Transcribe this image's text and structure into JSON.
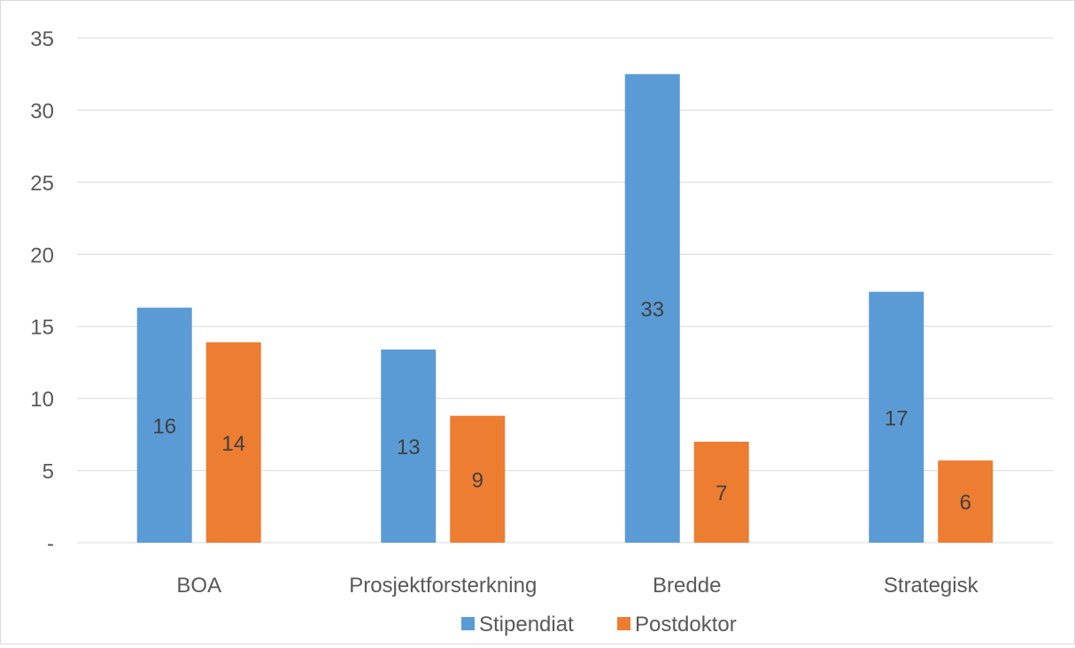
{
  "chart_data": {
    "type": "bar",
    "title": "",
    "xlabel": "",
    "ylabel": "",
    "categories": [
      "BOA",
      "Prosjektforsterkning",
      "Bredde",
      "Strategisk"
    ],
    "series": [
      {
        "name": "Stipendiat",
        "color": "#5b9bd5",
        "values": [
          16.3,
          13.4,
          32.5,
          17.4
        ],
        "labels": [
          "16",
          "13",
          "33",
          "17"
        ]
      },
      {
        "name": "Postdoktor",
        "color": "#ed7d31",
        "values": [
          13.9,
          8.8,
          7.0,
          5.7
        ],
        "labels": [
          "14",
          "9",
          "7",
          "6"
        ]
      }
    ],
    "ylim": [
      0,
      35
    ],
    "yticks": [
      0,
      5,
      10,
      15,
      20,
      25,
      30,
      35
    ],
    "ytick_labels": [
      "-",
      "5",
      "10",
      "15",
      "20",
      "25",
      "30",
      "35"
    ],
    "grid": true,
    "legend": "bottom-center"
  }
}
